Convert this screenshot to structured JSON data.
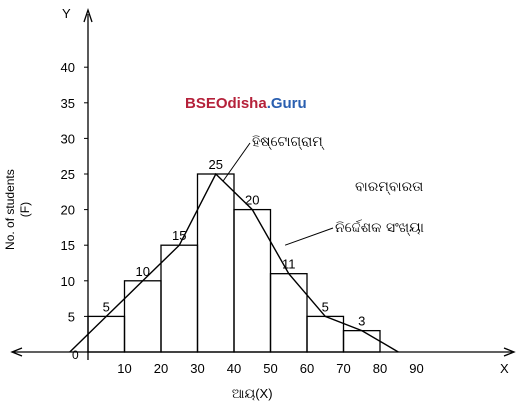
{
  "watermark": {
    "part1": "BSEOdisha",
    "part2": ".Guru",
    "color1": "#b5213a",
    "color2": "#2a5fb0"
  },
  "chart_data": {
    "type": "bar",
    "subtype": "histogram-with-frequency-polygon",
    "x_axis_letter": "X",
    "y_axis_letter": "Y",
    "xlabel": "ଆୟ(X)",
    "ylabel_line1": "No. of students",
    "ylabel_line2": "(F)",
    "origin_label": "0",
    "xlim": [
      0,
      100
    ],
    "ylim": [
      0,
      45
    ],
    "x_ticks": [
      10,
      20,
      30,
      40,
      50,
      60,
      70,
      80,
      90
    ],
    "x_tick_labels": [
      "10",
      "20",
      "30",
      "40",
      "50",
      "60",
      "70",
      "80",
      "90"
    ],
    "y_ticks": [
      5,
      10,
      15,
      20,
      25,
      30,
      35,
      40
    ],
    "y_tick_labels": [
      "5",
      "10",
      "15",
      "20",
      "25",
      "30",
      "35",
      "40"
    ],
    "bins": [
      {
        "from": 0,
        "to": 10,
        "value": 5,
        "label": "5"
      },
      {
        "from": 10,
        "to": 20,
        "value": 10,
        "label": "10"
      },
      {
        "from": 20,
        "to": 30,
        "value": 15,
        "label": "15"
      },
      {
        "from": 30,
        "to": 40,
        "value": 25,
        "label": "25"
      },
      {
        "from": 40,
        "to": 50,
        "value": 20,
        "label": "20"
      },
      {
        "from": 50,
        "to": 60,
        "value": 11,
        "label": "11"
      },
      {
        "from": 60,
        "to": 70,
        "value": 5,
        "label": "5"
      },
      {
        "from": 70,
        "to": 80,
        "value": 3,
        "label": "3"
      }
    ],
    "polygon": [
      [
        -5,
        0
      ],
      [
        5,
        5
      ],
      [
        15,
        10
      ],
      [
        25,
        15
      ],
      [
        35,
        25
      ],
      [
        45,
        20
      ],
      [
        55,
        11
      ],
      [
        65,
        5
      ],
      [
        75,
        3
      ],
      [
        85,
        0
      ]
    ],
    "annotations": [
      {
        "text": "ହିଷ୍ଟୋଗ୍ରାମ୍",
        "target": [
          37,
          24
        ]
      },
      {
        "text_line1": "ବାରମ୍ବାରତା",
        "text_line2": "ନିର୍ଦ୍ଦେଶକ ସଂଖ୍ୟା",
        "target": [
          54,
          15
        ]
      }
    ],
    "grid": false,
    "legend": "none"
  }
}
